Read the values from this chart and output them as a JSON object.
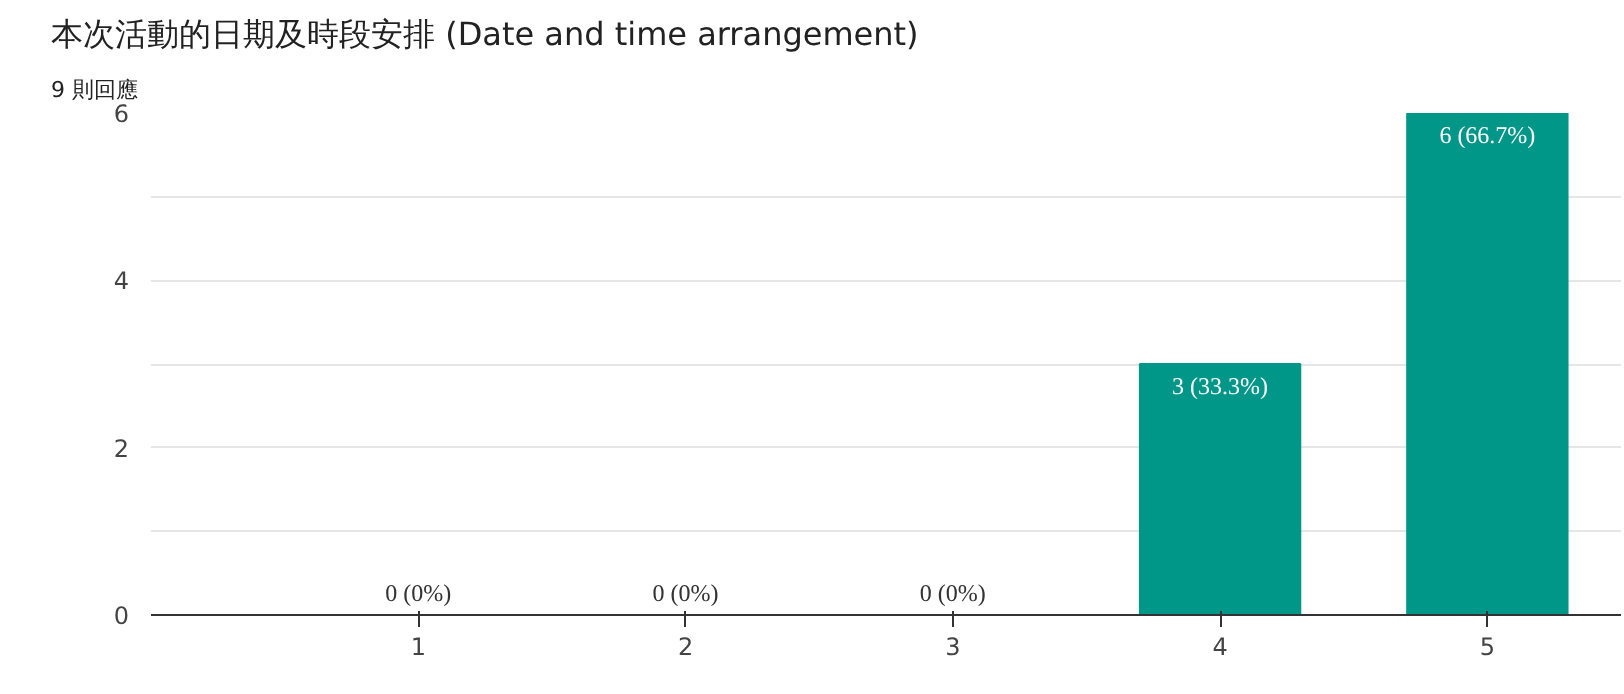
{
  "chart_data": {
    "type": "bar",
    "title": "本次活動的日期及時段安排  (Date and time arrangement)",
    "subtitle": "9 則回應",
    "categories": [
      "1",
      "2",
      "3",
      "4",
      "5"
    ],
    "values": [
      0,
      0,
      0,
      3,
      6
    ],
    "color": "#009688",
    "value_labels": [
      "0 (0%)",
      "0 (0%)",
      "0 (0%)",
      "3 (33.3%)",
      "6 (66.7%)"
    ],
    "ylim": [
      0,
      6
    ],
    "yticks": [
      0,
      {
        "value": 1,
        "label": null
      },
      2,
      {
        "value": 3,
        "label": null
      },
      4,
      {
        "value": 5,
        "label": null
      },
      6
    ],
    "grid": "y"
  }
}
